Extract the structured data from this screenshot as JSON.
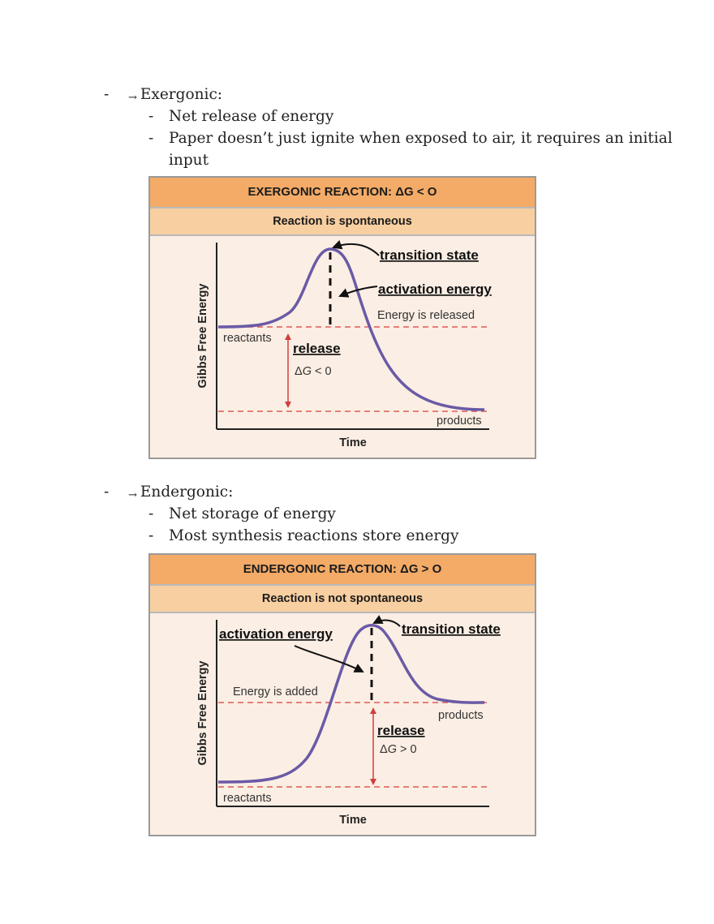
{
  "exergonic": {
    "bullet": "-",
    "arrow": "→",
    "heading": "Exergonic:",
    "points": [
      "Net release of energy",
      "Paper doesn’t just ignite when exposed to air, it requires an initial",
      "input"
    ],
    "figure": {
      "title": "EXERGONIC REACTION: ΔG < O",
      "subtitle": "Reaction is spontaneous",
      "ylabel": "Gibbs Free Energy",
      "xlabel": "Time",
      "transition_state": "transition state",
      "activation_energy": "activation energy",
      "energy_note": "Energy is released",
      "reactants": "reactants",
      "products": "products",
      "release": "release",
      "delta_prefix": "Δ",
      "delta_var": "G",
      "delta_suffix": " < 0"
    }
  },
  "endergonic": {
    "bullet": "-",
    "arrow": "→",
    "heading": "Endergonic:",
    "points": [
      "Net storage of energy",
      "Most synthesis reactions store energy"
    ],
    "figure": {
      "title": "ENDERGONIC REACTION: ΔG > O",
      "subtitle": "Reaction is not spontaneous",
      "ylabel": "Gibbs Free Energy",
      "xlabel": "Time",
      "transition_state": "transition state",
      "activation_energy": "activation energy",
      "energy_note": "Energy is added",
      "reactants": "reactants",
      "products": "products",
      "release": "release",
      "delta_prefix": "Δ",
      "delta_var": "G",
      "delta_suffix": " > 0"
    }
  },
  "colors": {
    "curve": "#6a5aa6",
    "dashed_line": "#e05a55",
    "arrow": "#cf3f3f",
    "header_bg": "#f3ab67",
    "subheader_bg": "#f8cfa1",
    "panel_bg": "#fbeee4"
  }
}
